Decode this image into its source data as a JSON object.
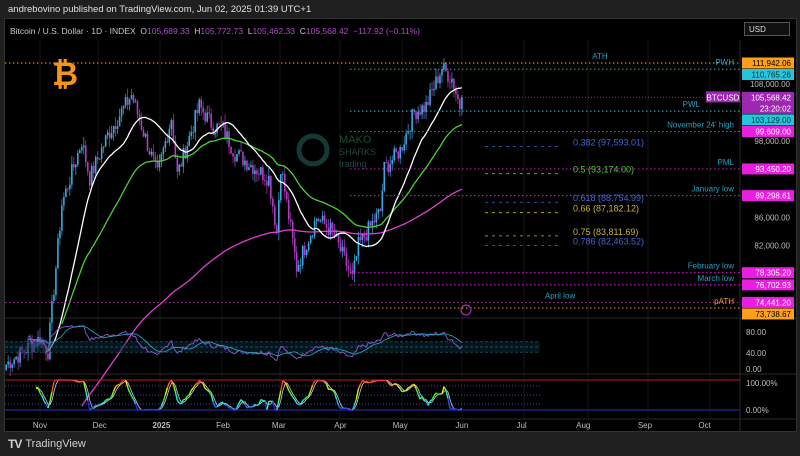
{
  "header": {
    "published": "andrebovino published on TradingView.com, Jun 02, 2025 01:39 UTC+1"
  },
  "legend": {
    "symbol": "Bitcoin / U.S. Dollar · 1D · INDEX",
    "o_label": "O",
    "o": "105,689.33",
    "h_label": "H",
    "h": "105,772.73",
    "l_label": "L",
    "l": "105,462.33",
    "c_label": "C",
    "c": "105,568.42",
    "change": "−117.92 (−0.11%)"
  },
  "currency": "USD",
  "logo": {
    "symbol": "₿",
    "watermark": "MAKO SHARKS trading"
  },
  "colors": {
    "up": "#3aa8e0",
    "down": "#b23cc4",
    "sma_fast": "#ffffff",
    "sma_mid": "#4cd137",
    "sma_slow": "#e040d0",
    "orange": "#ff9f1a",
    "cyan": "#26c6da",
    "magenta": "#e91ee0",
    "purple": "#9c27b0"
  },
  "price_axis": {
    "scale": "log",
    "ticks": [
      "108,000.00",
      "98,000.00",
      "86,000.00",
      "82,000.00"
    ],
    "tick_values": [
      108000,
      98000,
      86000,
      82000
    ]
  },
  "price_path": [
    [
      "2024-10-15",
      67000
    ],
    [
      "2024-11-01",
      70000
    ],
    [
      "2024-11-05",
      68500
    ],
    [
      "2024-11-12",
      88000
    ],
    [
      "2024-11-22",
      98000
    ],
    [
      "2024-11-26",
      92000
    ],
    [
      "2024-12-05",
      99000
    ],
    [
      "2024-12-17",
      106000
    ],
    [
      "2024-12-30",
      92500
    ],
    [
      "2025-01-06",
      102000
    ],
    [
      "2025-01-09",
      92500
    ],
    [
      "2025-01-20",
      104000
    ],
    [
      "2025-01-27",
      100500
    ],
    [
      "2025-02-01",
      100000
    ],
    [
      "2025-02-07",
      96000
    ],
    [
      "2025-02-24",
      92000
    ],
    [
      "2025-02-28",
      84000
    ],
    [
      "2025-03-02",
      94000
    ],
    [
      "2025-03-10",
      79000
    ],
    [
      "2025-03-20",
      86000
    ],
    [
      "2025-03-28",
      84000
    ],
    [
      "2025-04-07",
      77500
    ],
    [
      "2025-04-10",
      82000
    ],
    [
      "2025-04-21",
      87000
    ],
    [
      "2025-04-23",
      93500
    ],
    [
      "2025-05-01",
      96500
    ],
    [
      "2025-05-08",
      103000
    ],
    [
      "2025-05-14",
      104000
    ],
    [
      "2025-05-22",
      111000
    ],
    [
      "2025-05-27",
      109000
    ],
    [
      "2025-05-31",
      104000
    ],
    [
      "2025-06-01",
      105568.42
    ]
  ],
  "levels": [
    {
      "name": "ATH",
      "value": 111942.06,
      "badge": "111,942.06",
      "color": "#ff9f1a",
      "label_pos": "mid"
    },
    {
      "name": "PWH",
      "value": 110765.26,
      "badge": "110,765.26",
      "color": "#26c6da",
      "label_pos": "right"
    },
    {
      "name": "PWL",
      "value": 103129.0,
      "badge": "103,129.00",
      "color": "#26c6da",
      "label_pos": "right"
    },
    {
      "name": "November 24' high",
      "value": 99609.0,
      "badge": "99,609.00",
      "color": "#e91ee0",
      "label_pos": "right"
    },
    {
      "name": "PML",
      "value": 93450.2,
      "badge": "93,450.20",
      "color": "#e91ee0",
      "label_pos": "right"
    },
    {
      "name": "January low",
      "value": 89298.61,
      "badge": "89,298.61",
      "color": "#e91ee0",
      "label_pos": "right"
    },
    {
      "name": "February low",
      "value": 78305.2,
      "badge": "78,305.20",
      "color": "#e91ee0",
      "label_pos": "right"
    },
    {
      "name": "March low",
      "value": 76702.93,
      "badge": "76,702.93",
      "color": "#e91ee0",
      "label_pos": "right"
    },
    {
      "name": "April low",
      "value": 74441.2,
      "badge": "74,441.20",
      "color": "#e91ee0",
      "label_pos": "mid"
    },
    {
      "name": "pATH",
      "value": 73738.67,
      "badge": "73,738.67",
      "color": "#ff9f1a",
      "label_pos": "right"
    }
  ],
  "fib": [
    {
      "label": "0.382 (97,593.01)",
      "value": 97593.01,
      "color": "#3d6ad6"
    },
    {
      "label": "0.5 (93,174.00)",
      "value": 93174.0,
      "color": "#4cd137"
    },
    {
      "label": "0.618 (88,754.99)",
      "value": 88754.99,
      "color": "#3d6ad6"
    },
    {
      "label": "0.66 (87,182.12)",
      "value": 87182.12,
      "color": "#c8b23a"
    },
    {
      "label": "0.75 (83,811.69)",
      "value": 83811.69,
      "color": "#c8b23a"
    },
    {
      "label": "0.786 (82,463.52)",
      "value": 82463.52,
      "color": "#3d6ad6"
    }
  ],
  "last_price": {
    "symbol": "BTCUSD",
    "price": "105,568.42",
    "countdown": "23:20:02"
  },
  "rsi_axis": [
    "80.00",
    "40.00",
    "0.00"
  ],
  "stoch_axis": [
    "100.00%",
    "0.00%"
  ],
  "time_axis": [
    {
      "label": "Nov",
      "date": "2024-11-01"
    },
    {
      "label": "Dec",
      "date": "2024-12-01"
    },
    {
      "label": "2025",
      "date": "2025-01-01"
    },
    {
      "label": "Feb",
      "date": "2025-02-01"
    },
    {
      "label": "Mar",
      "date": "2025-03-01"
    },
    {
      "label": "Apr",
      "date": "2025-04-01"
    },
    {
      "label": "May",
      "date": "2025-05-01"
    },
    {
      "label": "Jun",
      "date": "2025-06-01"
    },
    {
      "label": "Jul",
      "date": "2025-07-01"
    },
    {
      "label": "Aug",
      "date": "2025-08-01"
    },
    {
      "label": "Sep",
      "date": "2025-09-01"
    },
    {
      "label": "Oct",
      "date": "2025-10-01"
    }
  ],
  "footer": {
    "brand": "TradingView",
    "mark": "TV"
  }
}
